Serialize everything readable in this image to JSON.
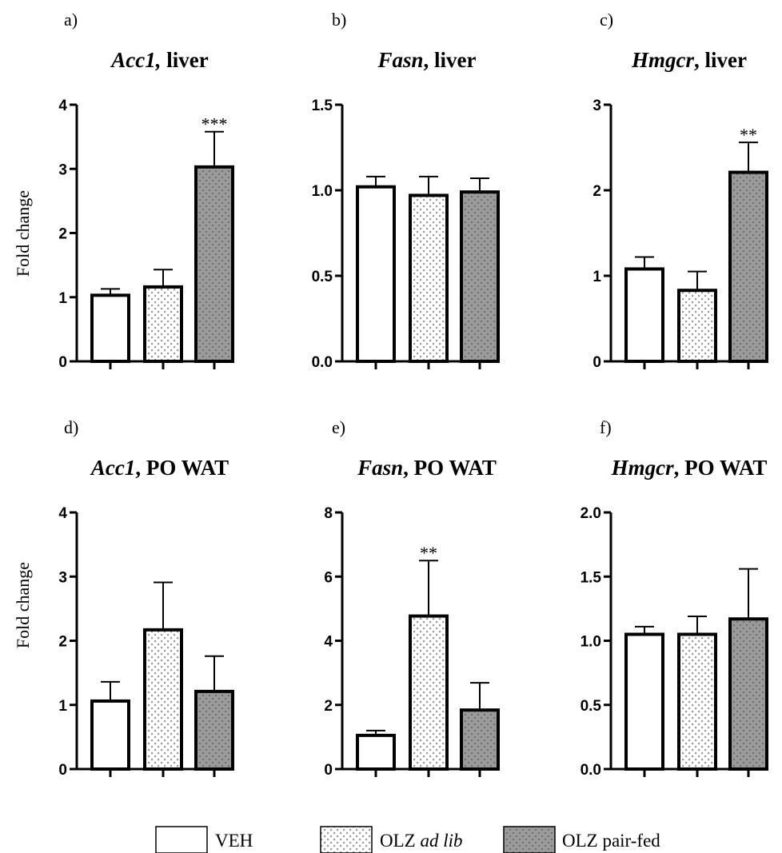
{
  "ylabel": "Fold change",
  "legend": [
    {
      "label": "VEH",
      "italic_part": "",
      "after": "",
      "pattern": "veh"
    },
    {
      "label": "OLZ ",
      "italic_part": "ad lib",
      "after": "",
      "pattern": "adlib"
    },
    {
      "label": "OLZ pair-fed",
      "italic_part": "",
      "after": "",
      "pattern": "pairfed"
    }
  ],
  "colors": {
    "veh": "#ffffff",
    "adlib_bg": "#ffffff",
    "adlib_dot": "#9a9a9a",
    "pairfed_bg": "#9a9a9a",
    "pairfed_dot": "#6e6e6e"
  },
  "chart_data": [
    {
      "type": "bar",
      "letter": "a)",
      "gene": "Acc1,",
      "tissue": " liver",
      "categories": [
        "VEH",
        "OLZ ad lib",
        "OLZ pair-fed"
      ],
      "values": [
        1.03,
        1.16,
        3.03
      ],
      "errors": [
        0.1,
        0.27,
        0.55
      ],
      "annotations": [
        "",
        "",
        "***"
      ],
      "ylim": [
        0,
        4
      ],
      "yticks": [
        0,
        1,
        2,
        3,
        4
      ],
      "ytick_labels": [
        "0",
        "1",
        "2",
        "3",
        "4"
      ]
    },
    {
      "type": "bar",
      "letter": "b)",
      "gene": "Fasn",
      "tissue": ", liver",
      "categories": [
        "VEH",
        "OLZ ad lib",
        "OLZ pair-fed"
      ],
      "values": [
        1.02,
        0.97,
        0.99
      ],
      "errors": [
        0.06,
        0.11,
        0.08
      ],
      "annotations": [
        "",
        "",
        ""
      ],
      "ylim": [
        0,
        1.5
      ],
      "yticks": [
        0,
        0.5,
        1.0,
        1.5
      ],
      "ytick_labels": [
        "0.0",
        "0.5",
        "1.0",
        "1.5"
      ]
    },
    {
      "type": "bar",
      "letter": "c)",
      "gene": "Hmgcr",
      "tissue": ", liver",
      "categories": [
        "VEH",
        "OLZ ad lib",
        "OLZ pair-fed"
      ],
      "values": [
        1.08,
        0.83,
        2.21
      ],
      "errors": [
        0.14,
        0.22,
        0.35
      ],
      "annotations": [
        "",
        "",
        "**"
      ],
      "ylim": [
        0,
        3
      ],
      "yticks": [
        0,
        1,
        2,
        3
      ],
      "ytick_labels": [
        "0",
        "1",
        "2",
        "3"
      ]
    },
    {
      "type": "bar",
      "letter": "d)",
      "gene": "Acc1",
      "tissue": ", PO WAT",
      "categories": [
        "VEH",
        "OLZ ad lib",
        "OLZ pair-fed"
      ],
      "values": [
        1.06,
        2.17,
        1.21
      ],
      "errors": [
        0.3,
        0.74,
        0.55
      ],
      "annotations": [
        "",
        "",
        ""
      ],
      "ylim": [
        0,
        4
      ],
      "yticks": [
        0,
        1,
        2,
        3,
        4
      ],
      "ytick_labels": [
        "0",
        "1",
        "2",
        "3",
        "4"
      ]
    },
    {
      "type": "bar",
      "letter": "e)",
      "gene": "Fasn",
      "tissue": ", PO WAT",
      "categories": [
        "VEH",
        "OLZ ad lib",
        "OLZ pair-fed"
      ],
      "values": [
        1.05,
        4.77,
        1.84
      ],
      "errors": [
        0.15,
        1.73,
        0.85
      ],
      "annotations": [
        "",
        "**",
        ""
      ],
      "ylim": [
        0,
        8
      ],
      "yticks": [
        0,
        2,
        4,
        6,
        8
      ],
      "ytick_labels": [
        "0",
        "2",
        "4",
        "6",
        "8"
      ]
    },
    {
      "type": "bar",
      "letter": "f)",
      "gene": "Hmgcr",
      "tissue": ", PO WAT",
      "categories": [
        "VEH",
        "OLZ ad lib",
        "OLZ pair-fed"
      ],
      "values": [
        1.05,
        1.05,
        1.17
      ],
      "errors": [
        0.06,
        0.14,
        0.39
      ],
      "annotations": [
        "",
        "",
        ""
      ],
      "ylim": [
        0,
        2
      ],
      "yticks": [
        0,
        0.5,
        1.0,
        1.5,
        2.0
      ],
      "ytick_labels": [
        "0.0",
        "0.5",
        "1.0",
        "1.5",
        "2.0"
      ]
    }
  ]
}
